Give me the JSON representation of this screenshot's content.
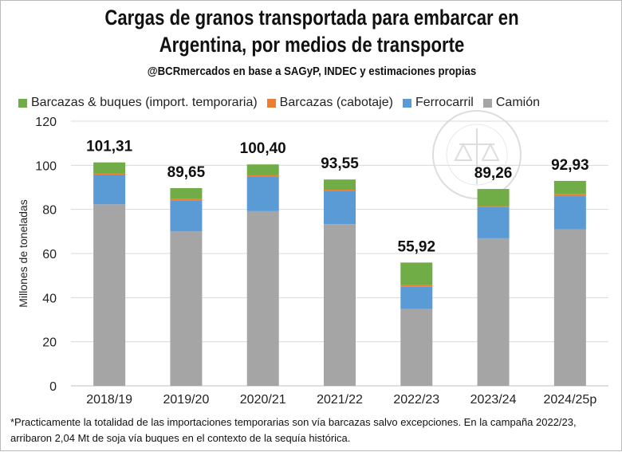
{
  "title_line1": "Cargas de granos transportada para embarcar en",
  "title_line2": "Argentina, por medios de transporte",
  "subtitle": "@BCRmercados en base a SAGyP, INDEC y estimaciones propias",
  "footnote": "*Practicamente la totalidad de las importaciones temporarias son vía barcazas salvo excepciones. En la campaña 2022/23, arribaron 2,04 Mt de soja vía buques en el contexto de la sequía histórica.",
  "watermark": "BOLSA DE COMERCIO DE ROSARIO",
  "chart_data": {
    "type": "bar",
    "stacked": true,
    "ylabel": "Millones de toneladas",
    "ylim": [
      0,
      120
    ],
    "yticks": [
      0,
      20,
      40,
      60,
      80,
      100,
      120
    ],
    "grid": true,
    "legend_position": "top",
    "categories": [
      "2018/19",
      "2019/20",
      "2020/21",
      "2021/22",
      "2022/23",
      "2023/24",
      "2024/25p"
    ],
    "totals": [
      "101,31",
      "89,65",
      "100,40",
      "93,55",
      "55,92",
      "89,26",
      "92,93"
    ],
    "series": [
      {
        "name": "Camión",
        "color": "#a5a5a5",
        "values": [
          82.3,
          70.0,
          79.2,
          73.3,
          34.8,
          66.9,
          70.9
        ]
      },
      {
        "name": "Ferrocarril",
        "color": "#5b9bd5",
        "values": [
          13.3,
          14.0,
          15.8,
          14.9,
          10.1,
          14.1,
          15.1
        ]
      },
      {
        "name": "Barcazas (cabotaje)",
        "color": "#ed7d31",
        "values": [
          0.9,
          0.7,
          0.6,
          0.7,
          0.7,
          0.5,
          1.0
        ]
      },
      {
        "name": "Barcazas & buques (import. temporaria)",
        "color": "#70ad47",
        "values": [
          4.8,
          4.95,
          4.8,
          4.65,
          10.3,
          7.76,
          5.93
        ]
      }
    ]
  }
}
